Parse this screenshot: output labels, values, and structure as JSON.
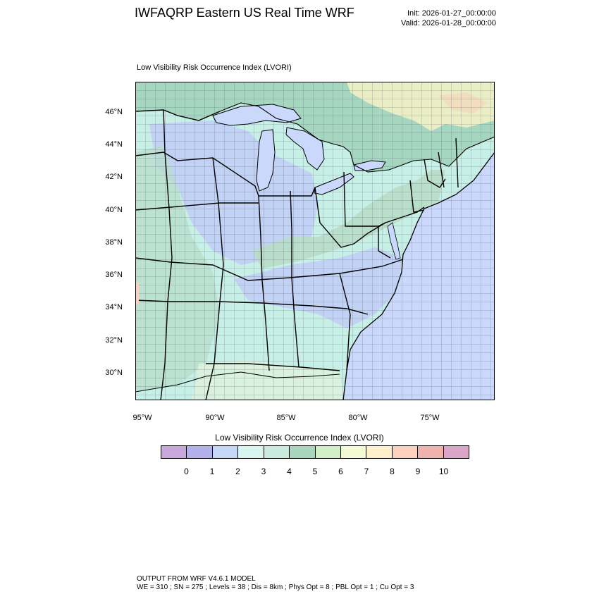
{
  "header": {
    "title": "IWFAQRP Eastern US Real Time WRF",
    "init": "Init: 2026-01-27_00:00:00",
    "valid": "Valid: 2026-01-28_00:00:00"
  },
  "map": {
    "subtitle": "Low Visibility Risk Occurrence Index   (LVORI)",
    "lat_labels": [
      "46°N",
      "44°N",
      "42°N",
      "40°N",
      "38°N",
      "36°N",
      "34°N",
      "32°N",
      "30°N"
    ],
    "lon_labels": [
      "95°W",
      "90°W",
      "85°W",
      "80°W",
      "75°W"
    ],
    "colors": {
      "water": "#c9d8fb",
      "land_low": "#c6efe6",
      "land_mid": "#b7ddc7",
      "canada": "#a5d7c0",
      "high_terrain": "#e9eec4",
      "state_border": "#000000"
    }
  },
  "colorbar": {
    "title": "Low Visibility Risk Occurrence Index  (LVORI)",
    "colors": [
      "#c8a8dc",
      "#b3b0ec",
      "#c6d6f7",
      "#d9f5ef",
      "#c9ebdd",
      "#a8d6bd",
      "#d3efc7",
      "#f2fbd4",
      "#fef0cb",
      "#fbd1bd",
      "#eeb3ad",
      "#d9a5c9"
    ],
    "labels": [
      "0",
      "1",
      "2",
      "3",
      "4",
      "5",
      "6",
      "7",
      "8",
      "9",
      "10"
    ]
  },
  "footer": {
    "line1": "OUTPUT FROM WRF V4.6.1 MODEL",
    "line2": "WE = 310 ; SN = 275 ; Levels = 38 ; Dis = 8km ; Phys Opt = 8 ; PBL Opt = 1 ; Cu Opt = 3"
  }
}
